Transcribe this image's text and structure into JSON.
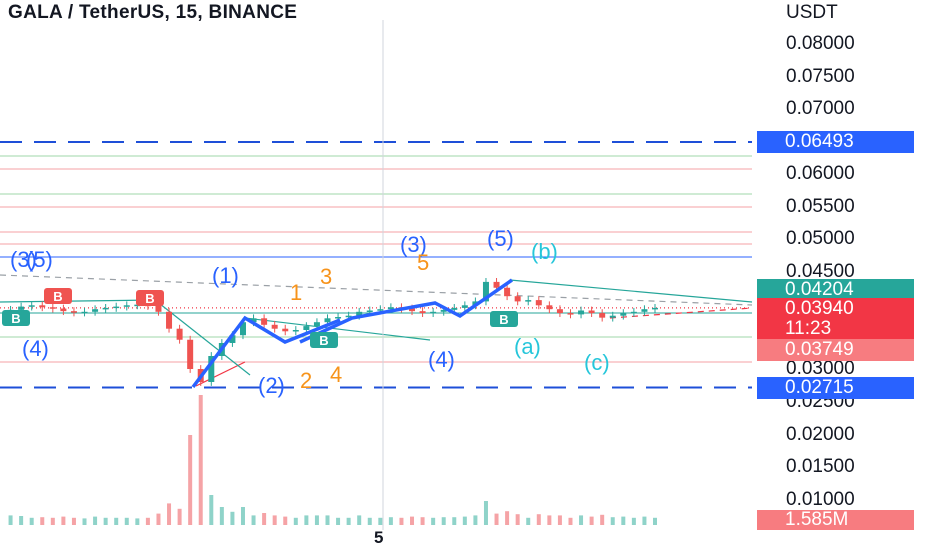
{
  "header": {
    "title": "GALA / TetherUS, 15, BINANCE"
  },
  "price_axis": {
    "unit": "USDT",
    "ticks": [
      "0.08000",
      "0.07500",
      "0.07000",
      "0.06000",
      "0.05500",
      "0.05000",
      "0.04500",
      "0.03000",
      "0.02500",
      "0.02000",
      "0.01500",
      "0.01000"
    ]
  },
  "badges": {
    "upper_level": "0.06493",
    "resistance": "0.04204",
    "last_price": "0.03940",
    "countdown": "11:23",
    "support": "0.03749",
    "lower_level": "0.02715",
    "volume": "1.585M"
  },
  "x_axis": {
    "ticks": [
      "5"
    ]
  },
  "colors": {
    "wave_blue": "#2962ff",
    "sub_orange": "#f7931a",
    "corr_cyan": "#26c6da",
    "candle_up": "#26a69a",
    "candle_down": "#ef5350",
    "level_dash": "#1e4fd8"
  },
  "chart_data": {
    "type": "candlestick",
    "title": "GALA / TetherUS, 15, BINANCE",
    "ylabel": "USDT",
    "ylim": [
      0.0,
      0.084
    ],
    "horizontal_levels": [
      0.06493,
      0.04204,
      0.0394,
      0.03749,
      0.02715
    ],
    "last_price": 0.0394,
    "close_path": [
      0.0385,
      0.0391,
      0.0396,
      0.0398,
      0.0395,
      0.0393,
      0.0389,
      0.0387,
      0.0388,
      0.0392,
      0.0394,
      0.0396,
      0.0398,
      0.0399,
      0.0397,
      0.0388,
      0.0362,
      0.0345,
      0.03,
      0.028,
      0.032,
      0.034,
      0.0352,
      0.0372,
      0.0378,
      0.0368,
      0.0362,
      0.0358,
      0.036,
      0.0366,
      0.0372,
      0.0378,
      0.038,
      0.0382,
      0.0388,
      0.039,
      0.0392,
      0.0395,
      0.0393,
      0.0389,
      0.0386,
      0.0388,
      0.0391,
      0.0394,
      0.0398,
      0.0404,
      0.0434,
      0.0425,
      0.0412,
      0.0404,
      0.0406,
      0.0398,
      0.0392,
      0.0386,
      0.0384,
      0.039,
      0.0386,
      0.0379,
      0.0382,
      0.0386,
      0.0388,
      0.0392,
      0.0394
    ],
    "wave_labels": [
      {
        "text": "(3)",
        "color": "blue"
      },
      {
        "text": "(5)",
        "color": "blue"
      },
      {
        "text": "(4)",
        "color": "blue"
      },
      {
        "text": "(1)",
        "color": "blue"
      },
      {
        "text": "(2)",
        "color": "blue"
      },
      {
        "text": "(3)",
        "color": "blue"
      },
      {
        "text": "(5)",
        "color": "blue"
      },
      {
        "text": "(4)",
        "color": "blue"
      },
      {
        "text": "1",
        "color": "orange"
      },
      {
        "text": "3",
        "color": "orange"
      },
      {
        "text": "2",
        "color": "orange"
      },
      {
        "text": "4",
        "color": "orange"
      },
      {
        "text": "5",
        "color": "orange"
      },
      {
        "text": "(a)",
        "color": "cyan"
      },
      {
        "text": "(b)",
        "color": "cyan"
      },
      {
        "text": "(c)",
        "color": "cyan"
      }
    ],
    "markers": [
      "B",
      "B",
      "B",
      "B"
    ]
  }
}
